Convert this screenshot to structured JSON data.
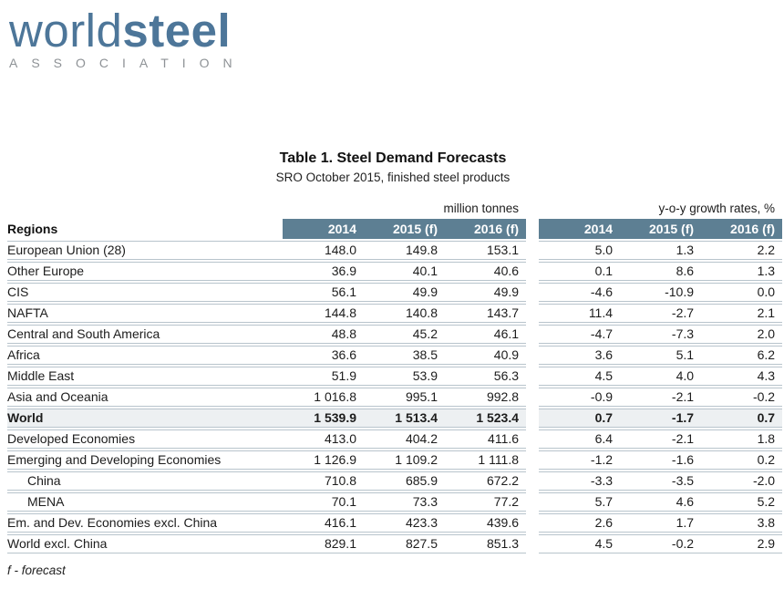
{
  "logo": {
    "word_light": "world",
    "word_bold": "steel",
    "association": "ASSOCIATION"
  },
  "title": "Table 1. Steel Demand Forecasts",
  "subtitle": "SRO October 2015, finished steel products",
  "table": {
    "regions_header": "Regions",
    "group1_label": "million tonnes",
    "group2_label": "y-o-y growth rates, %",
    "year_headers": [
      "2014",
      "2015 (f)",
      "2016 (f)"
    ],
    "rows": [
      {
        "region": "European Union (28)",
        "tonnes": [
          "148.0",
          "149.8",
          "153.1"
        ],
        "growth": [
          "5.0",
          "1.3",
          "2.2"
        ],
        "emphasis": false,
        "indent": false
      },
      {
        "region": "Other Europe",
        "tonnes": [
          "36.9",
          "40.1",
          "40.6"
        ],
        "growth": [
          "0.1",
          "8.6",
          "1.3"
        ],
        "emphasis": false,
        "indent": false
      },
      {
        "region": "CIS",
        "tonnes": [
          "56.1",
          "49.9",
          "49.9"
        ],
        "growth": [
          "-4.6",
          "-10.9",
          "0.0"
        ],
        "emphasis": false,
        "indent": false
      },
      {
        "region": "NAFTA",
        "tonnes": [
          "144.8",
          "140.8",
          "143.7"
        ],
        "growth": [
          "11.4",
          "-2.7",
          "2.1"
        ],
        "emphasis": false,
        "indent": false
      },
      {
        "region": "Central and South America",
        "tonnes": [
          "48.8",
          "45.2",
          "46.1"
        ],
        "growth": [
          "-4.7",
          "-7.3",
          "2.0"
        ],
        "emphasis": false,
        "indent": false
      },
      {
        "region": "Africa",
        "tonnes": [
          "36.6",
          "38.5",
          "40.9"
        ],
        "growth": [
          "3.6",
          "5.1",
          "6.2"
        ],
        "emphasis": false,
        "indent": false
      },
      {
        "region": "Middle East",
        "tonnes": [
          "51.9",
          "53.9",
          "56.3"
        ],
        "growth": [
          "4.5",
          "4.0",
          "4.3"
        ],
        "emphasis": false,
        "indent": false
      },
      {
        "region": "Asia and Oceania",
        "tonnes": [
          "1 016.8",
          "995.1",
          "992.8"
        ],
        "growth": [
          "-0.9",
          "-2.1",
          "-0.2"
        ],
        "emphasis": false,
        "indent": false
      },
      {
        "region": "World",
        "tonnes": [
          "1 539.9",
          "1 513.4",
          "1 523.4"
        ],
        "growth": [
          "0.7",
          "-1.7",
          "0.7"
        ],
        "emphasis": true,
        "indent": false
      },
      {
        "region": "Developed Economies",
        "tonnes": [
          "413.0",
          "404.2",
          "411.6"
        ],
        "growth": [
          "6.4",
          "-2.1",
          "1.8"
        ],
        "emphasis": false,
        "indent": false
      },
      {
        "region": "Emerging and Developing Economies",
        "tonnes": [
          "1 126.9",
          "1 109.2",
          "1 111.8"
        ],
        "growth": [
          "-1.2",
          "-1.6",
          "0.2"
        ],
        "emphasis": false,
        "indent": false
      },
      {
        "region": "China",
        "tonnes": [
          "710.8",
          "685.9",
          "672.2"
        ],
        "growth": [
          "-3.3",
          "-3.5",
          "-2.0"
        ],
        "emphasis": false,
        "indent": true
      },
      {
        "region": "MENA",
        "tonnes": [
          "70.1",
          "73.3",
          "77.2"
        ],
        "growth": [
          "5.7",
          "4.6",
          "5.2"
        ],
        "emphasis": false,
        "indent": true
      },
      {
        "region": "Em. and Dev. Economies excl. China",
        "tonnes": [
          "416.1",
          "423.3",
          "439.6"
        ],
        "growth": [
          "2.6",
          "1.7",
          "3.8"
        ],
        "emphasis": false,
        "indent": false
      },
      {
        "region": "World excl. China",
        "tonnes": [
          "829.1",
          "827.5",
          "851.3"
        ],
        "growth": [
          "4.5",
          "-0.2",
          "2.9"
        ],
        "emphasis": false,
        "indent": false
      }
    ]
  },
  "footnote": "f - forecast",
  "colors": {
    "band_bg": "#5d7f93",
    "logo_blue": "#4d7699",
    "association_gray": "#8e9296",
    "row_border": "#b8c4cc",
    "highlight_row_bg": "#edf0f2"
  }
}
